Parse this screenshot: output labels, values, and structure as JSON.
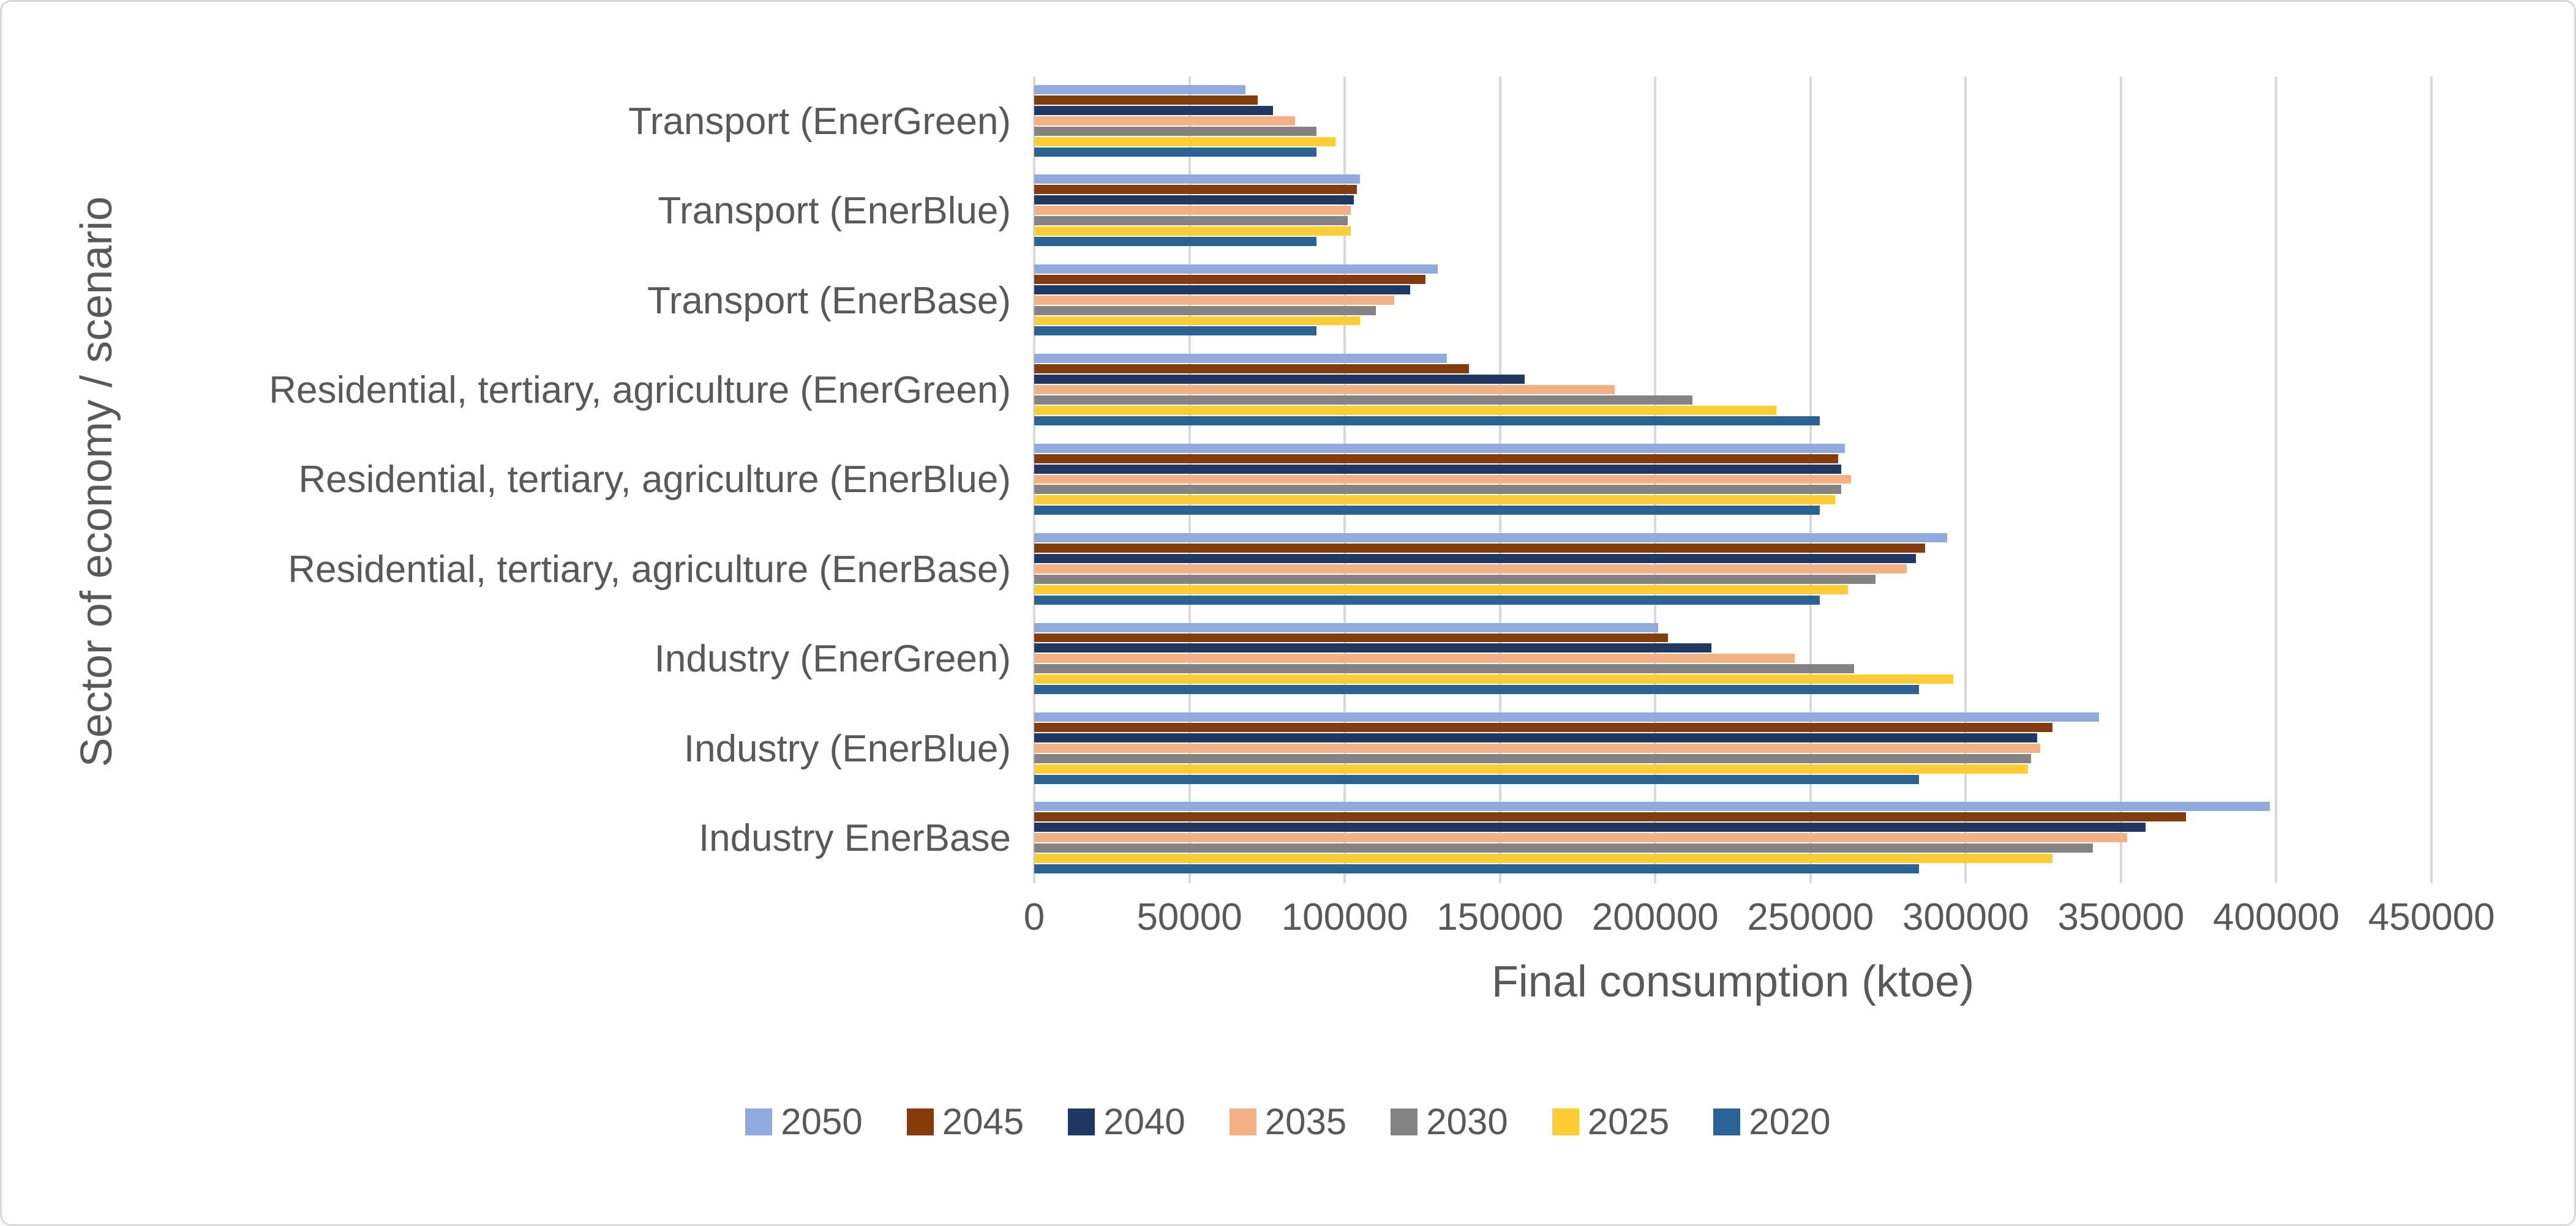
{
  "frame": {
    "background_color": "#FFFFFF",
    "border_color": "#D9D9D9",
    "text_color": "#595959",
    "gridline_color": "#D9D9D9"
  },
  "chart_data": {
    "type": "bar",
    "orientation": "horizontal",
    "title": "",
    "xlabel": "Final consumption (ktoe)",
    "ylabel": "Sector of economy / scenario",
    "xlim": [
      0,
      450000
    ],
    "xticks": [
      0,
      50000,
      100000,
      150000,
      200000,
      250000,
      300000,
      350000,
      400000,
      450000
    ],
    "grid": true,
    "legend_position": "bottom",
    "categories": [
      "Transport (EnerGreen)",
      "Transport (EnerBlue)",
      "Transport (EnerBase)",
      "Residential, tertiary, agriculture (EnerGreen)",
      "Residential, tertiary, agriculture (EnerBlue)",
      "Residential, tertiary, agriculture (EnerBase)",
      "Industry (EnerGreen)",
      "Industry (EnerBlue)",
      "Industry EnerBase"
    ],
    "series": [
      {
        "name": "2050",
        "color": "#8FAADC",
        "values": [
          68000,
          105000,
          130000,
          133000,
          261000,
          294000,
          201000,
          343000,
          398000
        ]
      },
      {
        "name": "2045",
        "color": "#843C0C",
        "values": [
          72000,
          104000,
          126000,
          140000,
          259000,
          287000,
          204000,
          328000,
          371000
        ]
      },
      {
        "name": "2040",
        "color": "#1F3864",
        "values": [
          77000,
          103000,
          121000,
          158000,
          260000,
          284000,
          218000,
          323000,
          358000
        ]
      },
      {
        "name": "2035",
        "color": "#F4B183",
        "values": [
          84000,
          102000,
          116000,
          187000,
          263000,
          281000,
          245000,
          324000,
          352000
        ]
      },
      {
        "name": "2030",
        "color": "#848484",
        "values": [
          91000,
          101000,
          110000,
          212000,
          260000,
          271000,
          264000,
          321000,
          341000
        ]
      },
      {
        "name": "2025",
        "color": "#FFCC33",
        "values": [
          97000,
          102000,
          105000,
          239000,
          258000,
          262000,
          296000,
          320000,
          328000
        ]
      },
      {
        "name": "2020",
        "color": "#2A6496",
        "values": [
          91000,
          91000,
          91000,
          253000,
          253000,
          253000,
          285000,
          285000,
          285000
        ]
      }
    ]
  }
}
